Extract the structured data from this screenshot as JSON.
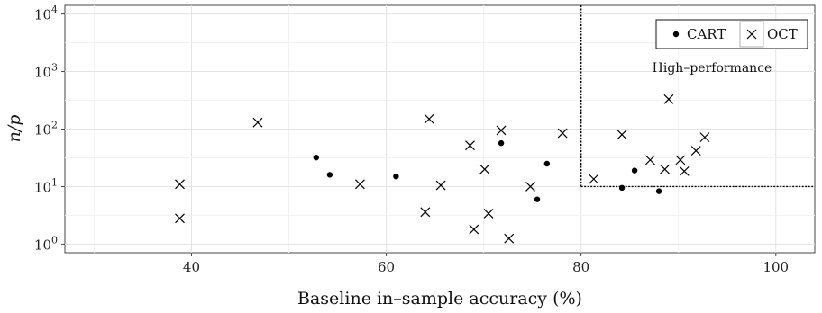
{
  "chart_data": {
    "type": "scatter",
    "xlabel": "Baseline in–sample accuracy (%)",
    "ylabel": "n/p",
    "xlim": [
      27,
      104
    ],
    "ylim_log10": [
      -0.15,
      4.15
    ],
    "y_scale": "log10",
    "x_ticks": [
      40,
      60,
      80,
      100
    ],
    "x_tick_labels": [
      "40",
      "60",
      "80",
      "100"
    ],
    "y_ticks": [
      1,
      10,
      100,
      1000,
      10000
    ],
    "y_tick_base": "10",
    "y_tick_exponents": [
      "0",
      "1",
      "2",
      "3",
      "4"
    ],
    "grid": true,
    "legend_position": "top-right",
    "region": {
      "label": "High–performance",
      "x_min": 80,
      "y_min": 10
    },
    "series": [
      {
        "name": "CART",
        "marker": "dot",
        "color": "#000000",
        "points": [
          {
            "x": 52.8,
            "y": 32
          },
          {
            "x": 54.2,
            "y": 16
          },
          {
            "x": 61.0,
            "y": 15
          },
          {
            "x": 71.8,
            "y": 57
          },
          {
            "x": 75.5,
            "y": 6
          },
          {
            "x": 76.5,
            "y": 25
          },
          {
            "x": 84.2,
            "y": 9.5
          },
          {
            "x": 85.5,
            "y": 19
          },
          {
            "x": 88.0,
            "y": 8.3
          }
        ]
      },
      {
        "name": "OCT",
        "marker": "cross",
        "color": "#000000",
        "points": [
          {
            "x": 38.8,
            "y": 11
          },
          {
            "x": 38.8,
            "y": 2.8
          },
          {
            "x": 46.8,
            "y": 130
          },
          {
            "x": 57.3,
            "y": 11
          },
          {
            "x": 64.0,
            "y": 3.6
          },
          {
            "x": 64.4,
            "y": 150
          },
          {
            "x": 65.6,
            "y": 10.5
          },
          {
            "x": 68.6,
            "y": 52
          },
          {
            "x": 69.0,
            "y": 1.8
          },
          {
            "x": 70.1,
            "y": 20
          },
          {
            "x": 70.5,
            "y": 3.4
          },
          {
            "x": 71.8,
            "y": 95
          },
          {
            "x": 72.6,
            "y": 1.25
          },
          {
            "x": 74.8,
            "y": 10
          },
          {
            "x": 78.1,
            "y": 85
          },
          {
            "x": 81.3,
            "y": 13.5
          },
          {
            "x": 84.2,
            "y": 80
          },
          {
            "x": 87.1,
            "y": 29
          },
          {
            "x": 88.6,
            "y": 20
          },
          {
            "x": 89.0,
            "y": 330
          },
          {
            "x": 90.2,
            "y": 29
          },
          {
            "x": 90.6,
            "y": 18.5
          },
          {
            "x": 91.8,
            "y": 42
          },
          {
            "x": 92.7,
            "y": 72
          }
        ]
      }
    ]
  }
}
